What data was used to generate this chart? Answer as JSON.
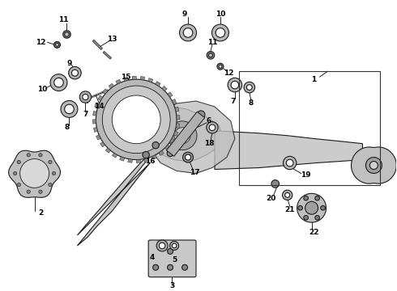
{
  "background_color": "#ffffff",
  "line_color": "#1a1a1a",
  "fig_width": 4.9,
  "fig_height": 3.6,
  "dpi": 100,
  "label_fontsize": 6.5
}
